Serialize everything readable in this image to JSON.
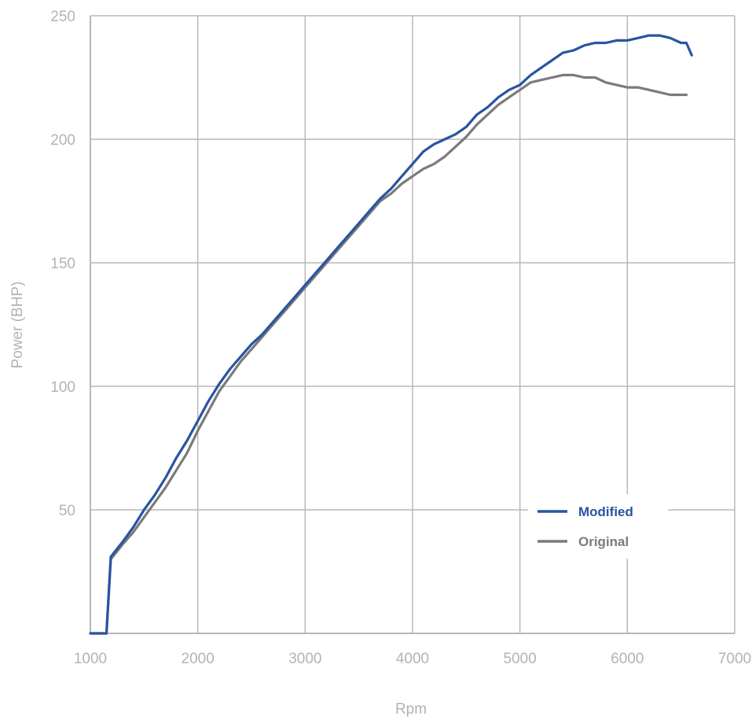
{
  "chart_data": {
    "type": "line",
    "xlabel": "Rpm",
    "ylabel": "Power (BHP)",
    "xlim": [
      1000,
      7000
    ],
    "ylim": [
      0,
      250
    ],
    "xticks": [
      1000,
      2000,
      3000,
      4000,
      5000,
      6000,
      7000
    ],
    "yticks": [
      50,
      100,
      150,
      200,
      250
    ],
    "grid": true,
    "legend_position": "lower-right",
    "series": [
      {
        "name": "Modified",
        "color": "#2855a0",
        "x": [
          1000,
          1150,
          1190,
          1300,
          1400,
          1500,
          1600,
          1700,
          1800,
          1900,
          2000,
          2100,
          2200,
          2300,
          2400,
          2500,
          2600,
          2700,
          2800,
          2900,
          3000,
          3100,
          3200,
          3300,
          3400,
          3500,
          3600,
          3700,
          3800,
          3900,
          4000,
          4100,
          4200,
          4300,
          4400,
          4500,
          4600,
          4700,
          4800,
          4900,
          5000,
          5100,
          5200,
          5300,
          5400,
          5500,
          5600,
          5700,
          5800,
          5900,
          6000,
          6100,
          6200,
          6300,
          6400,
          6500,
          6550,
          6600
        ],
        "y": [
          0,
          0,
          31,
          37,
          43,
          50,
          56,
          63,
          71,
          78,
          86,
          94,
          101,
          107,
          112,
          117,
          121,
          126,
          131,
          136,
          141,
          146,
          151,
          156,
          161,
          166,
          171,
          176,
          180,
          185,
          190,
          195,
          198,
          200,
          202,
          205,
          210,
          213,
          217,
          220,
          222,
          226,
          229,
          232,
          235,
          236,
          238,
          239,
          239,
          240,
          240,
          241,
          242,
          242,
          241,
          239,
          239,
          234
        ]
      },
      {
        "name": "Original",
        "color": "#7b7b7b",
        "x": [
          1000,
          1150,
          1190,
          1300,
          1400,
          1500,
          1600,
          1700,
          1800,
          1900,
          2000,
          2100,
          2200,
          2300,
          2400,
          2500,
          2600,
          2700,
          2800,
          2900,
          3000,
          3100,
          3200,
          3300,
          3400,
          3500,
          3600,
          3700,
          3800,
          3900,
          4000,
          4100,
          4200,
          4300,
          4400,
          4500,
          4600,
          4700,
          4800,
          4900,
          5000,
          5100,
          5200,
          5300,
          5400,
          5500,
          5600,
          5700,
          5800,
          5900,
          6000,
          6100,
          6200,
          6300,
          6400,
          6500,
          6550
        ],
        "y": [
          0,
          0,
          30,
          36,
          41,
          47,
          53,
          59,
          66,
          73,
          82,
          90,
          98,
          104,
          110,
          115,
          120,
          125,
          130,
          135,
          140,
          145,
          150,
          155,
          160,
          165,
          170,
          175,
          178,
          182,
          185,
          188,
          190,
          193,
          197,
          201,
          206,
          210,
          214,
          217,
          220,
          223,
          224,
          225,
          226,
          226,
          225,
          225,
          223,
          222,
          221,
          221,
          220,
          219,
          218,
          218,
          218
        ]
      }
    ]
  }
}
